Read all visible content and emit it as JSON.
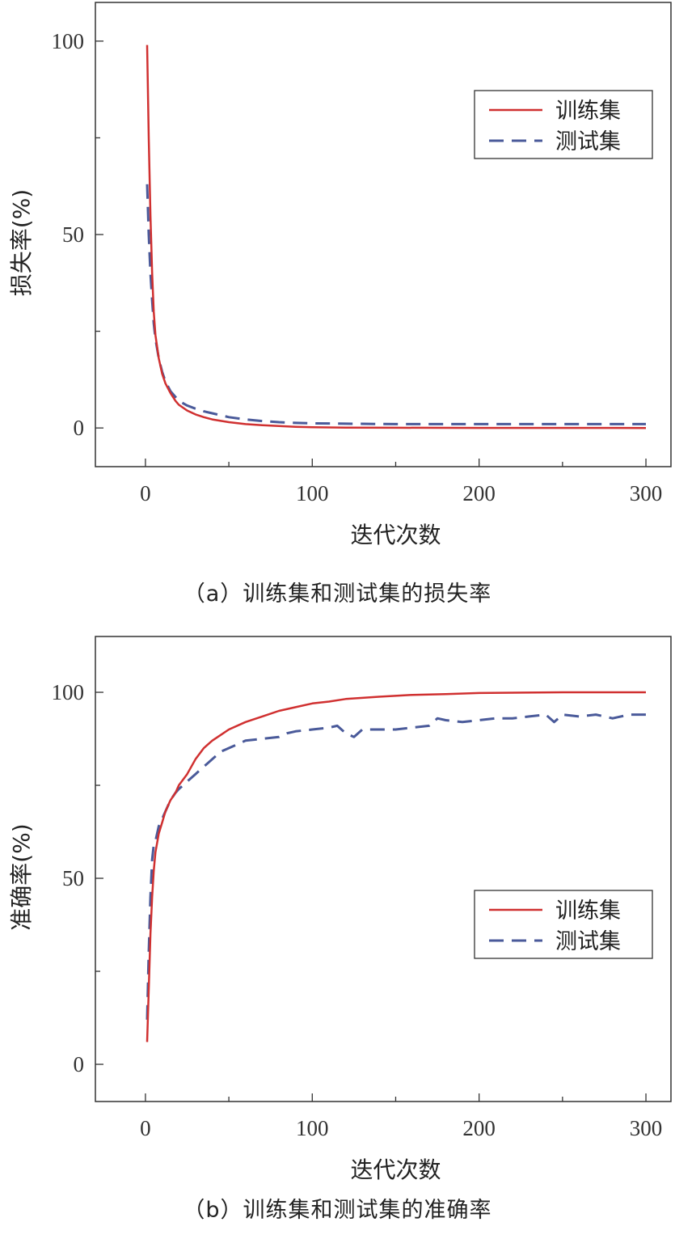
{
  "chart_data": [
    {
      "type": "line",
      "id": "loss",
      "xlabel": "迭代次数",
      "ylabel": "损失率(%)",
      "xlim": [
        -30,
        315
      ],
      "ylim": [
        -10,
        110
      ],
      "xticks": [
        0,
        100,
        200,
        300
      ],
      "yticks": [
        0,
        50,
        100
      ],
      "legend_position": "top-right",
      "caption": "（a）训练集和测试集的损失率",
      "series": [
        {
          "name": "训练集",
          "color": "#d03030",
          "style": "solid",
          "x": [
            1,
            2,
            3,
            4,
            5,
            6,
            8,
            10,
            12,
            15,
            18,
            20,
            25,
            30,
            35,
            40,
            50,
            60,
            70,
            80,
            90,
            100,
            120,
            150,
            200,
            250,
            300
          ],
          "y": [
            99,
            75,
            55,
            40,
            30,
            24,
            18,
            14,
            11.5,
            9,
            7,
            6,
            4.5,
            3.5,
            2.8,
            2.2,
            1.5,
            1.0,
            0.7,
            0.5,
            0.3,
            0.2,
            0.1,
            0.05,
            0.02,
            0.01,
            0
          ]
        },
        {
          "name": "测试集",
          "color": "#4a5a9a",
          "style": "dashed",
          "x": [
            1,
            2,
            3,
            4,
            5,
            6,
            8,
            10,
            12,
            15,
            18,
            20,
            25,
            30,
            35,
            40,
            50,
            60,
            70,
            80,
            90,
            100,
            120,
            150,
            200,
            250,
            300
          ],
          "y": [
            63,
            50,
            40,
            33,
            27,
            23,
            18,
            14.5,
            12,
            9.5,
            8,
            7,
            5.8,
            5,
            4.3,
            3.8,
            2.8,
            2.2,
            1.8,
            1.5,
            1.3,
            1.2,
            1.1,
            1.0,
            1.0,
            1.0,
            1.0
          ]
        }
      ]
    },
    {
      "type": "line",
      "id": "accuracy",
      "xlabel": "迭代次数",
      "ylabel": "准确率(%)",
      "xlim": [
        -30,
        315
      ],
      "ylim": [
        -10,
        115
      ],
      "xticks": [
        0,
        100,
        200,
        300
      ],
      "yticks": [
        0,
        50,
        100
      ],
      "legend_position": "center-right",
      "caption": "（b）训练集和测试集的准确率",
      "series": [
        {
          "name": "训练集",
          "color": "#d03030",
          "style": "solid",
          "x": [
            1,
            2,
            3,
            4,
            5,
            6,
            8,
            10,
            12,
            15,
            18,
            20,
            25,
            30,
            35,
            40,
            45,
            50,
            60,
            70,
            80,
            90,
            100,
            110,
            120,
            140,
            160,
            180,
            200,
            250,
            300
          ],
          "y": [
            6,
            20,
            35,
            45,
            52,
            57,
            62,
            65,
            68,
            71,
            73,
            75,
            78,
            82,
            85,
            87,
            88.5,
            90,
            92,
            93.5,
            95,
            96,
            97,
            97.5,
            98.2,
            98.8,
            99.3,
            99.5,
            99.8,
            100,
            100
          ]
        },
        {
          "name": "测试集",
          "color": "#4a5a9a",
          "style": "dashed",
          "x": [
            1,
            2,
            3,
            4,
            5,
            6,
            8,
            10,
            12,
            15,
            18,
            20,
            25,
            30,
            35,
            40,
            45,
            50,
            55,
            60,
            70,
            80,
            85,
            90,
            100,
            110,
            115,
            120,
            125,
            130,
            140,
            150,
            160,
            170,
            175,
            180,
            190,
            200,
            210,
            220,
            230,
            240,
            245,
            250,
            260,
            270,
            280,
            290,
            300
          ],
          "y": [
            12,
            30,
            45,
            55,
            59,
            60,
            64,
            66,
            68,
            71,
            73,
            74,
            76,
            78,
            80,
            82,
            84,
            85,
            86,
            87,
            87.5,
            88,
            89,
            89.5,
            90,
            90.5,
            91,
            89,
            88,
            90,
            90,
            90,
            90.5,
            91,
            93,
            92.5,
            92,
            92.5,
            93,
            93,
            93.5,
            94,
            92,
            94,
            93.5,
            94,
            93,
            94,
            94
          ]
        }
      ]
    }
  ]
}
